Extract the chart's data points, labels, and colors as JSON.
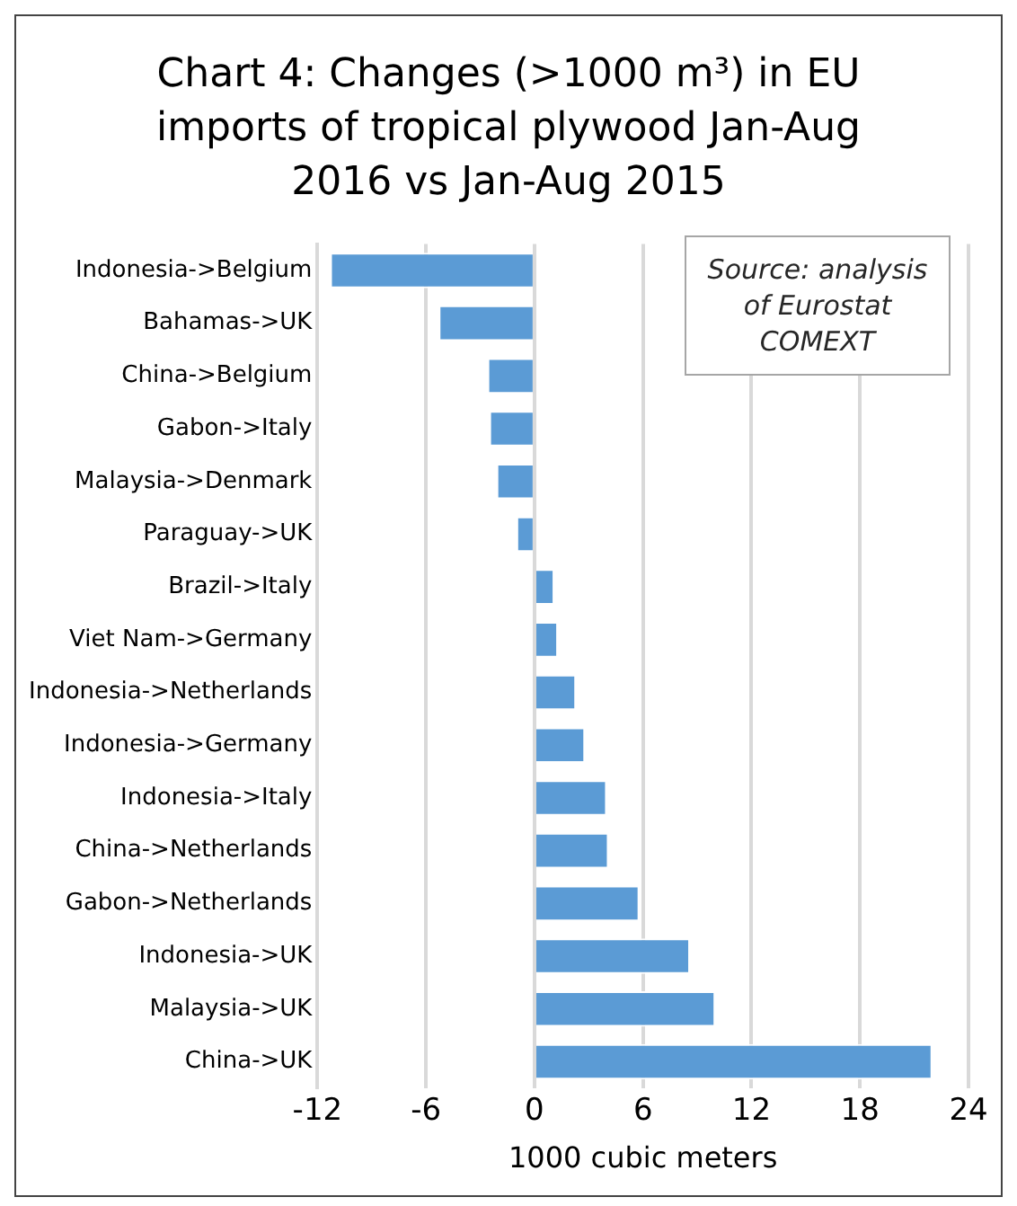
{
  "chart_data": {
    "type": "bar",
    "orientation": "horizontal",
    "title": "Chart 4: Changes (>1000 m³) in EU imports of tropical plywood Jan-Aug 2016 vs Jan-Aug 2015",
    "xlabel": "1000 cubic meters",
    "categories": [
      "Indonesia->Belgium",
      "Bahamas->UK",
      "China->Belgium",
      "Gabon->Italy",
      "Malaysia->Denmark",
      "Paraguay->UK",
      "Brazil->Italy",
      "Viet Nam->Germany",
      "Indonesia->Netherlands",
      "Indonesia->Germany",
      "Indonesia->Italy",
      "China->Netherlands",
      "Gabon->Netherlands",
      "Indonesia->UK",
      "Malaysia->UK",
      "China->UK"
    ],
    "values": [
      -11.3,
      -5.3,
      -2.6,
      -2.5,
      -2.1,
      -1.0,
      1.1,
      1.3,
      2.3,
      2.8,
      4.0,
      4.1,
      5.8,
      8.6,
      10.0,
      22.0
    ],
    "color": "#5b9bd5",
    "xlim": [
      -12,
      24
    ],
    "xticks": [
      -12,
      -6,
      0,
      6,
      12,
      18,
      24
    ],
    "grid": "x",
    "legend": false,
    "annotations": [
      "Source: analysis of Eurostat COMEXT"
    ]
  }
}
